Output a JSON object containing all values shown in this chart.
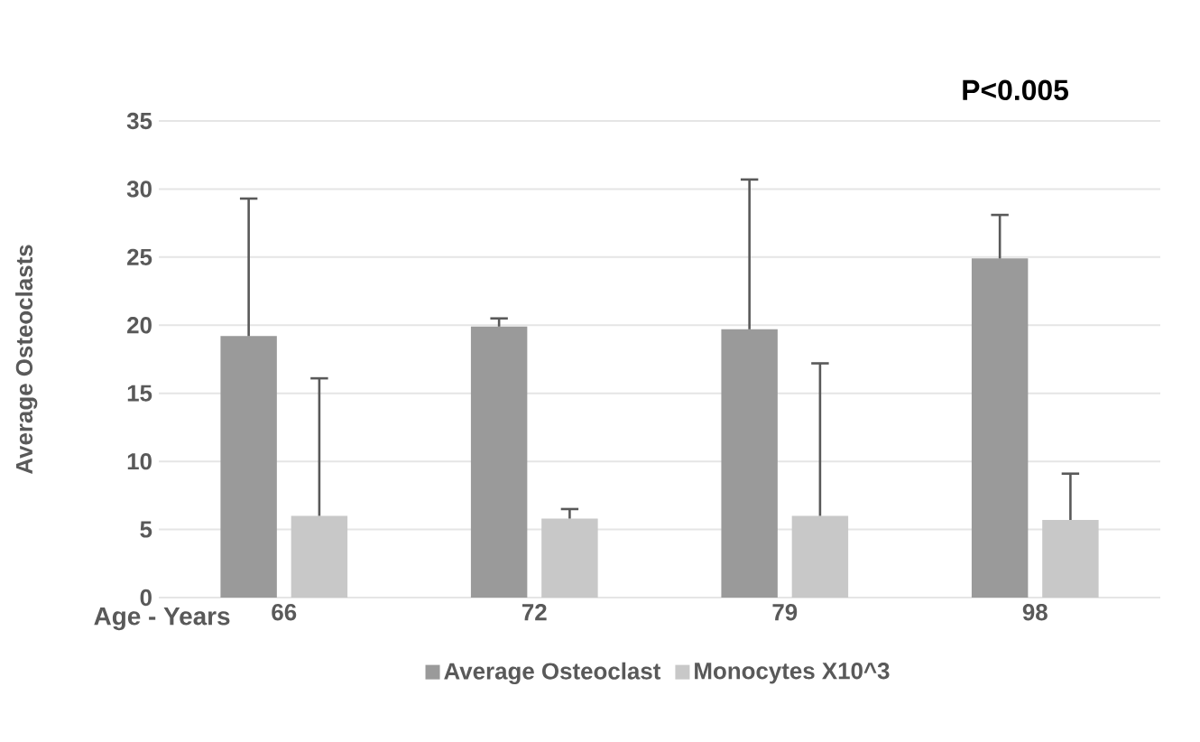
{
  "chart_data": {
    "type": "bar",
    "xlabel": "Age - Years",
    "ylabel": "Average Osteoclasts",
    "annotations": [
      "P<0.005"
    ],
    "categories": [
      "66",
      "72",
      "79",
      "98"
    ],
    "series": [
      {
        "name": "Average Osteoclast",
        "color": "#9a9a9a",
        "values": [
          19.2,
          19.9,
          19.7,
          24.9
        ],
        "errors": [
          [
            19.2,
            29.3
          ],
          [
            19.9,
            20.5
          ],
          [
            19.7,
            30.7
          ],
          [
            24.9,
            28.1
          ]
        ]
      },
      {
        "name": "Monocytes X10^3",
        "color": "#c8c8c8",
        "values": [
          6.0,
          5.8,
          6.0,
          5.7
        ],
        "errors": [
          [
            6.0,
            16.1
          ],
          [
            5.8,
            6.5
          ],
          [
            6.0,
            17.2
          ],
          [
            5.7,
            9.1
          ]
        ]
      }
    ],
    "ylim": [
      0,
      35
    ],
    "yticks": [
      0,
      5,
      10,
      15,
      20,
      25,
      30,
      35
    ],
    "grid": "y",
    "legend": "bottom"
  }
}
